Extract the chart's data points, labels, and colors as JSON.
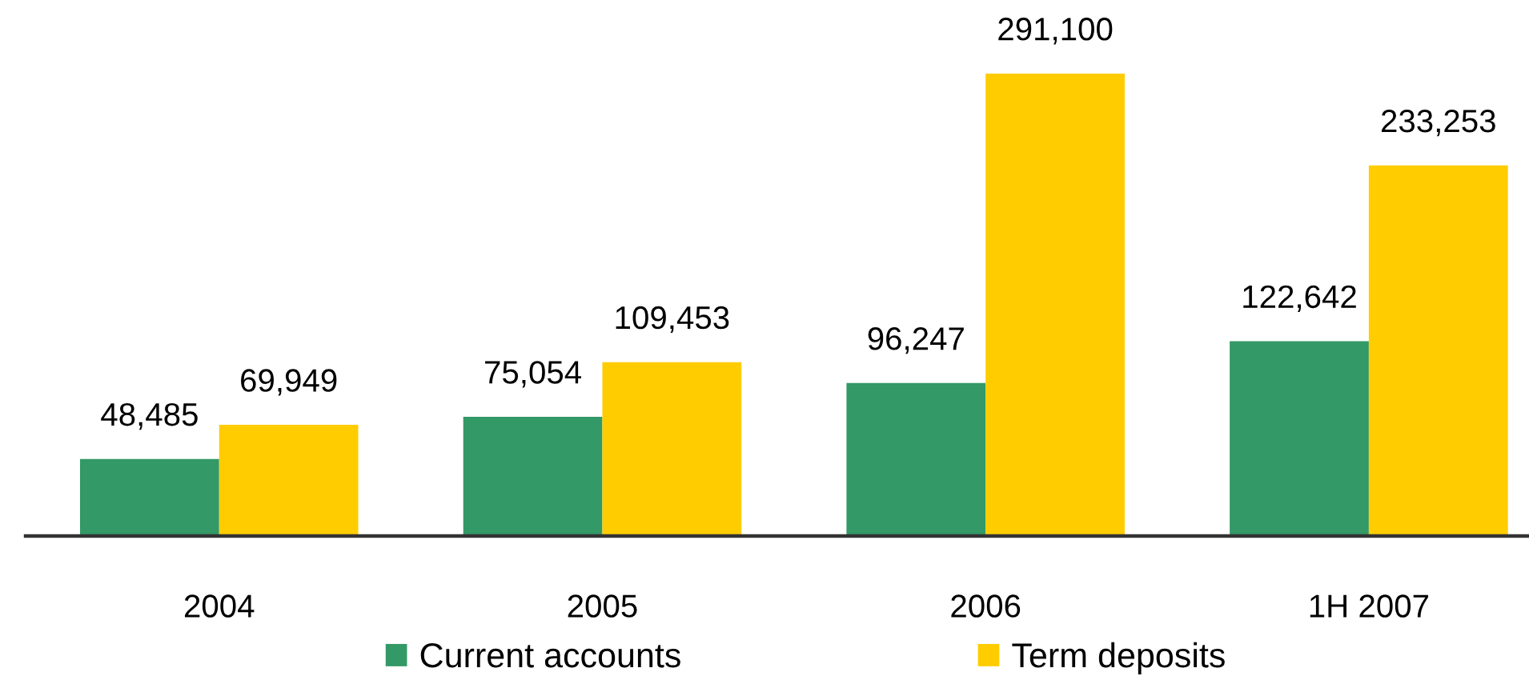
{
  "chart_data": {
    "type": "bar",
    "categories": [
      "2004",
      "2005",
      "2006",
      "1H 2007"
    ],
    "series": [
      {
        "name": "Current accounts",
        "color": "#339966",
        "values": [
          48485,
          75054,
          96247,
          122642
        ],
        "value_labels": [
          "48,485",
          "75,054",
          "96,247",
          "122,642"
        ]
      },
      {
        "name": "Term deposits",
        "color": "#ffcc00",
        "values": [
          69949,
          109453,
          291100,
          233253
        ],
        "value_labels": [
          "69,949",
          "109,453",
          "291,100",
          "233,253"
        ]
      }
    ],
    "legend": "bottom",
    "grid": false,
    "tick_labels": "x"
  }
}
